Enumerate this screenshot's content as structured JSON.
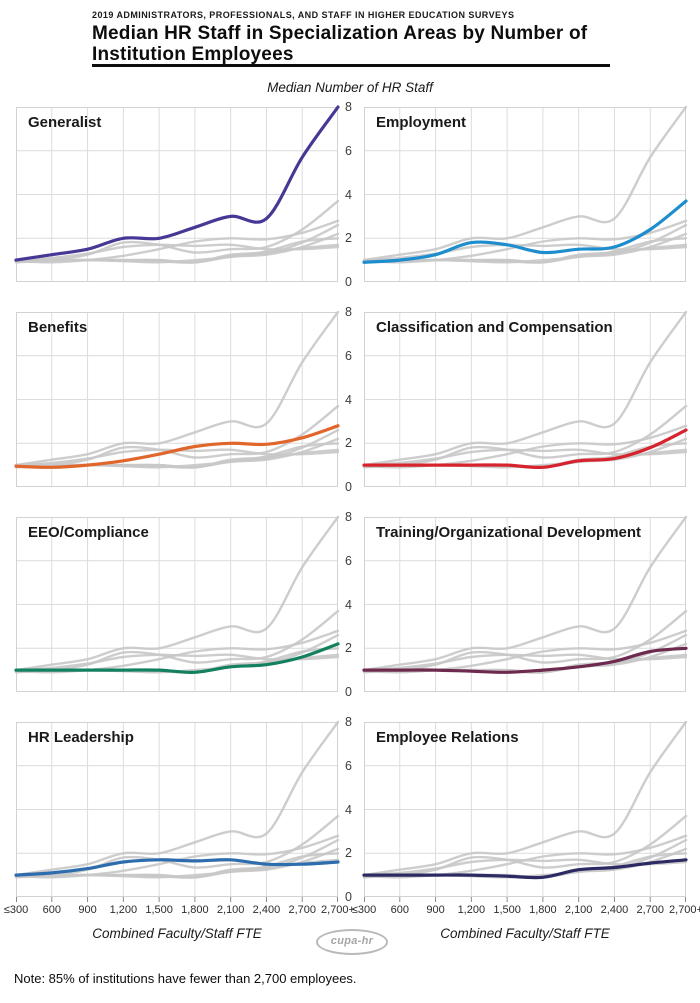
{
  "header": {
    "kicker": "2019 ADMINISTRATORS, PROFESSIONALS, AND STAFF IN HIGHER EDUCATION SURVEYS",
    "title_lines": [
      "Median HR Staff in Specialization Areas by Number of",
      "Institution Employees"
    ]
  },
  "footnote": "Note: 85% of institutions have fewer than 2,700 employees.",
  "logo_text": "cupa-hr",
  "chart_data": {
    "type": "line",
    "layout": "small-multiples, 4 rows x 2 cols, all series shown gray in each panel with one highlighted",
    "title": "Median HR Staff in Specialization Areas by Number of Institution Employees",
    "y_axis_title": "Median Number of HR Staff",
    "x_axis_title": "Combined Faculty/Staff FTE",
    "categories": [
      "≤300",
      "600",
      "900",
      "1,200",
      "1,500",
      "1,800",
      "2,100",
      "2,400",
      "2,700",
      "2,700+"
    ],
    "ylim": [
      0,
      8
    ],
    "y_ticks": [
      8,
      6,
      4,
      2,
      0
    ],
    "grid_y_values": [
      2,
      4,
      6
    ],
    "grid": "on",
    "background_line_color": "#c8c8c8",
    "grid_color": "#dcdcdc",
    "border_color": "#d2d2d2",
    "tick_color": "#8a8a8a",
    "panels": [
      {
        "key": "generalist",
        "label": "Generalist",
        "color": "#483795"
      },
      {
        "key": "employment",
        "label": "Employment",
        "color": "#1d8dce"
      },
      {
        "key": "benefits",
        "label": "Benefits",
        "color": "#e0662b"
      },
      {
        "key": "classification_compensation",
        "label": "Classification and Compensation",
        "color": "#d6232e"
      },
      {
        "key": "eeo_compliance",
        "label": "EEO/Compliance",
        "color": "#138060"
      },
      {
        "key": "training_org_dev",
        "label": "Training/Organizational Development",
        "color": "#6e2a4e"
      },
      {
        "key": "hr_leadership",
        "label": "HR Leadership",
        "color": "#2d6dad"
      },
      {
        "key": "employee_relations",
        "label": "Employee Relations",
        "color": "#2b2a62"
      }
    ],
    "series": {
      "generalist": [
        1,
        1.25,
        1.5,
        2,
        2,
        2.5,
        3,
        2.9,
        5.7,
        8
      ],
      "employment": [
        0.9,
        1,
        1.25,
        1.8,
        1.7,
        1.35,
        1.5,
        1.6,
        2.4,
        3.7
      ],
      "benefits": [
        0.95,
        0.9,
        1,
        1.2,
        1.5,
        1.85,
        2,
        1.95,
        2.25,
        2.8
      ],
      "classification_compensation": [
        1,
        1,
        1,
        1,
        1,
        0.9,
        1.2,
        1.3,
        1.8,
        2.6
      ],
      "eeo_compliance": [
        1,
        1,
        1,
        1,
        1,
        0.9,
        1.15,
        1.25,
        1.6,
        2.2
      ],
      "training_org_dev": [
        1,
        1,
        1,
        0.95,
        0.9,
        1,
        1.15,
        1.4,
        1.85,
        2
      ],
      "hr_leadership": [
        1,
        1.1,
        1.3,
        1.6,
        1.7,
        1.65,
        1.7,
        1.5,
        1.5,
        1.6
      ],
      "employee_relations": [
        1,
        1,
        1,
        1,
        0.95,
        0.9,
        1.25,
        1.35,
        1.55,
        1.7
      ]
    }
  }
}
